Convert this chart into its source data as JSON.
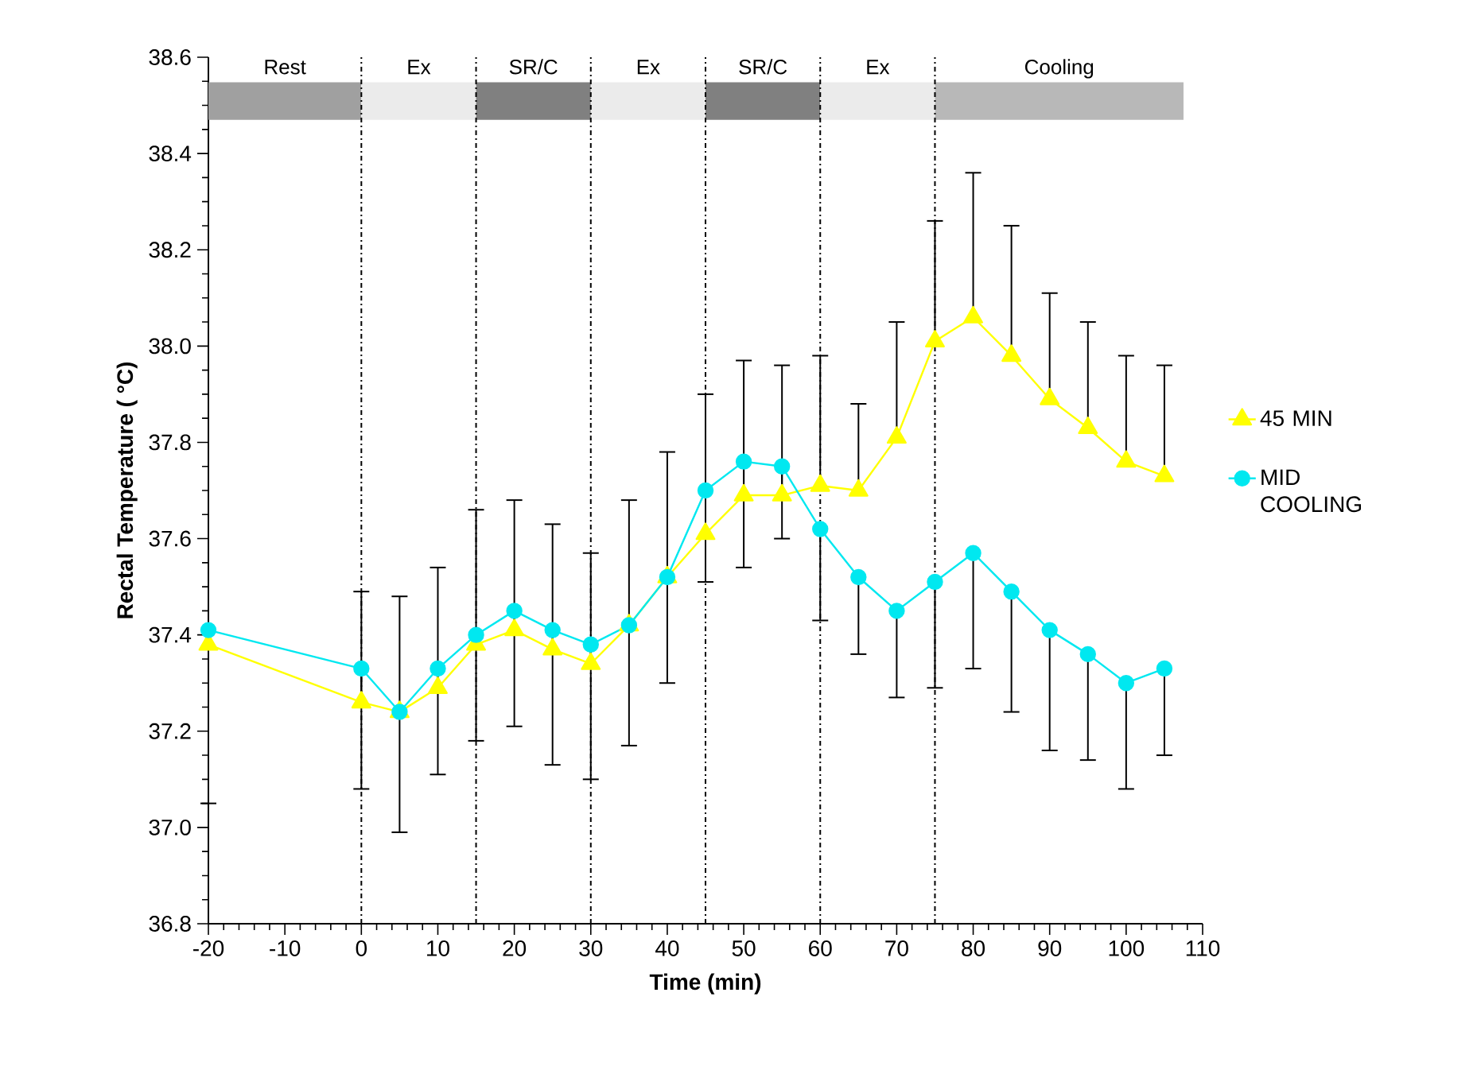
{
  "chart_data": {
    "type": "line",
    "xlabel": "Time (min)",
    "ylabel": "Rectal Temperature ( °C)",
    "x": [
      -20,
      0,
      5,
      10,
      15,
      20,
      25,
      30,
      35,
      40,
      45,
      50,
      55,
      60,
      65,
      70,
      75,
      80,
      85,
      90,
      95,
      100,
      105
    ],
    "series": [
      {
        "name": "45 MIN",
        "color": "#ffff00",
        "marker": "triangle",
        "values": [
          37.38,
          37.26,
          37.24,
          37.29,
          37.38,
          37.41,
          37.37,
          37.34,
          37.42,
          37.52,
          37.61,
          37.69,
          37.69,
          37.71,
          37.7,
          37.81,
          38.01,
          38.06,
          37.98,
          37.89,
          37.83,
          37.76,
          37.73
        ],
        "errors": [
          null,
          [
            37.26,
            37.49
          ],
          [
            37.24,
            37.48
          ],
          [
            37.29,
            37.54
          ],
          [
            37.38,
            37.66
          ],
          [
            37.41,
            37.68
          ],
          [
            37.37,
            37.63
          ],
          [
            37.34,
            37.57
          ],
          [
            37.42,
            37.68
          ],
          [
            37.52,
            37.78
          ],
          [
            37.61,
            37.9
          ],
          [
            37.69,
            37.97
          ],
          [
            37.69,
            37.96
          ],
          [
            37.71,
            37.98
          ],
          [
            37.7,
            37.88
          ],
          [
            37.81,
            38.05
          ],
          [
            38.01,
            38.26
          ],
          [
            38.06,
            38.36
          ],
          [
            37.98,
            38.25
          ],
          [
            37.89,
            38.11
          ],
          [
            37.83,
            38.05
          ],
          [
            37.76,
            37.98
          ],
          [
            37.73,
            37.96
          ]
        ]
      },
      {
        "name": "MID COOLING",
        "color": "#00e8f0",
        "marker": "circle",
        "values": [
          37.41,
          37.33,
          37.24,
          37.33,
          37.4,
          37.45,
          37.41,
          37.38,
          37.42,
          37.52,
          37.7,
          37.76,
          37.75,
          37.62,
          37.52,
          37.45,
          37.51,
          37.57,
          37.49,
          37.41,
          37.36,
          37.3,
          37.33
        ],
        "errors": [
          [
            37.05,
            37.41
          ],
          [
            37.08,
            37.33
          ],
          [
            36.99,
            37.24
          ],
          [
            37.11,
            37.33
          ],
          [
            37.18,
            37.4
          ],
          [
            37.21,
            37.45
          ],
          [
            37.13,
            37.41
          ],
          [
            37.1,
            37.38
          ],
          [
            37.17,
            37.42
          ],
          [
            37.3,
            37.52
          ],
          [
            37.51,
            37.7
          ],
          [
            37.54,
            37.76
          ],
          [
            37.6,
            37.75
          ],
          [
            37.43,
            37.62
          ],
          [
            37.36,
            37.52
          ],
          [
            37.27,
            37.45
          ],
          [
            37.29,
            37.51
          ],
          [
            37.33,
            37.57
          ],
          [
            37.24,
            37.49
          ],
          [
            37.16,
            37.41
          ],
          [
            37.14,
            37.36
          ],
          [
            37.08,
            37.3
          ],
          [
            37.15,
            37.33
          ]
        ]
      }
    ],
    "xlim": [
      -20,
      110
    ],
    "xticks": [
      -20,
      -10,
      0,
      10,
      20,
      30,
      40,
      50,
      60,
      70,
      80,
      90,
      100,
      110
    ],
    "ylim": [
      36.8,
      38.6
    ],
    "yticks": [
      {
        "value": 36.8,
        "label": "36.8"
      },
      {
        "value": 37.0,
        "label": "37.0"
      },
      {
        "value": 37.2,
        "label": "37.2"
      },
      {
        "value": 37.4,
        "label": "37.4"
      },
      {
        "value": 37.6,
        "label": "37.6"
      },
      {
        "value": 37.8,
        "label": "37.8"
      },
      {
        "value": 38.0,
        "label": "38.0"
      },
      {
        "value": 38.2,
        "label": "38.2"
      },
      {
        "value": 38.4,
        "label": "38.4"
      },
      {
        "value": 38.6,
        "label": "38.6"
      }
    ],
    "ref_lines": [
      {
        "axis": "x",
        "value": 0,
        "line_style": "dashdot"
      },
      {
        "axis": "x",
        "value": 15,
        "line_style": "dashdot"
      },
      {
        "axis": "x",
        "value": 30,
        "line_style": "dashdot"
      },
      {
        "axis": "x",
        "value": 45,
        "line_style": "dashdot"
      },
      {
        "axis": "x",
        "value": 60,
        "line_style": "dashdot"
      },
      {
        "axis": "x",
        "value": 75,
        "line_style": "dashdot"
      }
    ],
    "bands": [
      {
        "axis": "x",
        "from": -20,
        "to": 0,
        "label": "Rest",
        "color": "#a0a0a0"
      },
      {
        "axis": "x",
        "from": 0,
        "to": 15,
        "label": "Ex",
        "color": "#ebebeb"
      },
      {
        "axis": "x",
        "from": 15,
        "to": 30,
        "label": "SR/C",
        "color": "#808080"
      },
      {
        "axis": "x",
        "from": 30,
        "to": 45,
        "label": "Ex",
        "color": "#ebebeb"
      },
      {
        "axis": "x",
        "from": 45,
        "to": 60,
        "label": "SR/C",
        "color": "#808080"
      },
      {
        "axis": "x",
        "from": 60,
        "to": 75,
        "label": "Ex",
        "color": "#ebebeb"
      },
      {
        "axis": "x",
        "from": 75,
        "to": 107.5,
        "label": "Cooling",
        "color": "#b8b8b8"
      }
    ],
    "grid": false,
    "legend": "right"
  }
}
